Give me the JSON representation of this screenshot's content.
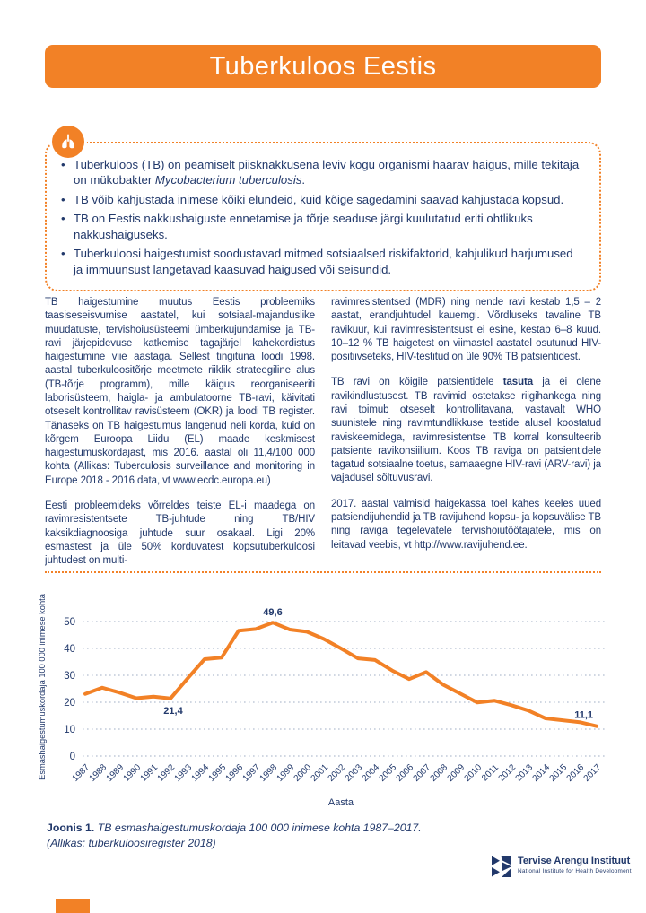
{
  "colors": {
    "orange": "#F28126",
    "navy": "#22396B",
    "grid": "#B3BFD1"
  },
  "header": {
    "title": "Tuberkuloos Eestis"
  },
  "infobox": {
    "icon": "lungs-icon",
    "bullets": [
      {
        "pre": "Tuberkuloos (TB) on peamiselt piisknakkusena leviv kogu organismi haarav haigus, mille tekitaja on mükobakter ",
        "italic": "Mycobacterium tuberculosis",
        "post": "."
      },
      {
        "pre": "TB võib kahjustada inimese kõiki elundeid, kuid kõige sagedamini saavad kahjustada kopsud.",
        "italic": "",
        "post": ""
      },
      {
        "pre": "TB on Eestis nakkushaiguste ennetamise ja tõrje seaduse järgi kuulutatud eriti ohtlikuks nakkushaiguseks.",
        "italic": "",
        "post": ""
      },
      {
        "pre": "Tuberkuloosi haigestumist soodustavad mitmed sotsiaalsed riskifaktorid, kahjulikud harjumused ja immuunsust langetavad kaasuvad haigused või seisundid.",
        "italic": "",
        "post": ""
      }
    ]
  },
  "body": {
    "left": {
      "p1": "TB haigestumine muutus Eestis probleemiks taasiseseisvumise aastatel, kui sotsiaal-majanduslike muudatuste, tervishoiusüsteemi ümberkujundamise ja TB-ravi järjepidevuse katkemise tagajärjel kahekordistus haigestumine viie aastaga. Sellest tingituna loodi 1998. aastal tuberkuloositõrje meetmete riiklik strateegiline alus (TB-tõrje programm), mille käigus reorganiseeriti laborisüsteem, haigla- ja ambulatoorne TB-ravi, käivitati otseselt kontrollitav ravisüsteem (OKR) ja loodi TB register. Tänaseks on TB haigestumus langenud neli korda, kuid on kõrgem Euroopa Liidu (EL) maade keskmisest haigestumuskordajast, mis 2016. aastal oli 11,4/100 000 kohta (Allikas: Tuberculosis surveillance and monitoring in Europe 2018 - 2016 data, vt www.ecdc.europa.eu)",
      "p2": "Eesti probleemideks võrreldes teiste EL-i maadega on ravimresistentsete TB-juhtude ning TB/HIV kaksikdiagnoosiga juhtude suur osakaal. Ligi 20% esmastest ja üle 50% korduvatest kopsutuberkuloosi juhtudest on multi-"
    },
    "right": {
      "p1": "ravimresistentsed (MDR) ning nende ravi kestab 1,5 – 2 aastat, erandjuhtudel kauemgi. Võrdluseks tavaline TB ravikuur, kui ravimresistentsust ei esine, kestab 6–8 kuud. 10–12 % TB haigetest on viimastel aastatel osutunud HIV-positiivseteks, HIV-testitud on üle 90% TB patsientidest.",
      "p2": {
        "pre": "TB ravi on kõigile patsientidele ",
        "bold": "tasuta",
        "post": " ja ei olene ravikindlustusest. TB ravimid ostetakse riigihankega ning ravi toimub otseselt kontrollitavana, vastavalt WHO suunistele ning ravimtundlikkuse testide alusel koostatud raviskeemidega, ravimresistentse TB korral konsulteerib patsiente ravikonsiilium. Koos TB raviga on patsientidele tagatud sotsiaalne toetus, samaaegne HIV-ravi (ARV-ravi) ja vajadusel sõltuvusravi."
      },
      "p3": "2017. aastal valmisid haigekassa toel kahes keeles uued patsiendijuhendid ja TB ravijuhend kopsu- ja kopsuvälise TB ning raviga tegelevatele tervishoiutöötajatele, mis on leitavad veebis, vt http://www.ravijuhend.ee."
    }
  },
  "chart_data": {
    "type": "line",
    "title": "",
    "xlabel": "Aasta",
    "ylabel": "Esmashaigestumuskordaja 100 000 inimese kohta",
    "ylim": [
      0,
      50
    ],
    "yticks": [
      0,
      10,
      20,
      30,
      40,
      50
    ],
    "grid": "horizontal dotted",
    "line_color": "#F28126",
    "x": [
      1987,
      1988,
      1989,
      1990,
      1991,
      1992,
      1993,
      1994,
      1995,
      1996,
      1997,
      1998,
      1999,
      2000,
      2001,
      2002,
      2003,
      2004,
      2005,
      2006,
      2007,
      2008,
      2009,
      2010,
      2011,
      2012,
      2013,
      2014,
      2015,
      2016,
      2017
    ],
    "series": [
      {
        "name": "TB esmashaigestumuskordaja",
        "values": [
          23.1,
          25.4,
          23.6,
          21.5,
          22.1,
          21.4,
          28.8,
          36.0,
          36.6,
          46.6,
          47.2,
          49.6,
          47.0,
          46.2,
          43.5,
          40.0,
          36.3,
          35.7,
          31.8,
          28.6,
          31.2,
          26.5,
          23.2,
          19.9,
          20.6,
          18.9,
          16.9,
          14.0,
          13.3,
          12.6,
          11.1
        ]
      }
    ],
    "annotations": [
      {
        "x": 1992,
        "value": 21.4,
        "label": "21,4",
        "placement": "below"
      },
      {
        "x": 1998,
        "value": 49.6,
        "label": "49,6",
        "placement": "above"
      },
      {
        "x": 2017,
        "value": 11.1,
        "label": "11,1",
        "placement": "above-left"
      }
    ]
  },
  "caption": {
    "label": "Joonis 1.",
    "text": " TB esmashaigestumuskordaja 100 000 inimese kohta 1987–2017.",
    "source": "(Allikas: tuberkuloosiregister 2018)"
  },
  "footer": {
    "org": "Tervise Arengu Instituut",
    "org_en": "National Institute for Health Development"
  }
}
